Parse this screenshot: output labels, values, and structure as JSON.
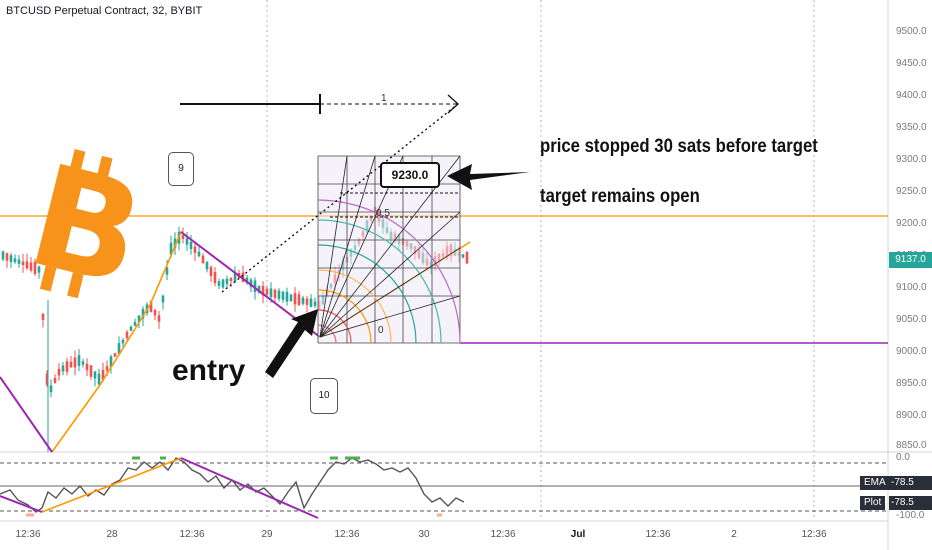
{
  "header": {
    "symbol_title": "BTCUSD Perpetual Contract, 32, BYBIT"
  },
  "price_axis": {
    "ticks": [
      "9500.0",
      "9450.0",
      "9400.0",
      "9350.0",
      "9300.0",
      "9250.0",
      "9200.0",
      "9150.0",
      "9100.0",
      "9050.0",
      "9000.0",
      "8950.0",
      "8900.0",
      "8850.0"
    ],
    "last_price": "9137.0",
    "last_price_color": "#26a69a"
  },
  "time_axis": {
    "labels": [
      {
        "text": "12:36",
        "bold": false
      },
      {
        "text": "28",
        "bold": false
      },
      {
        "text": "12:36",
        "bold": false
      },
      {
        "text": "29",
        "bold": false
      },
      {
        "text": "12:36",
        "bold": false
      },
      {
        "text": "30",
        "bold": false
      },
      {
        "text": "12:36",
        "bold": false
      },
      {
        "text": "Jul",
        "bold": true
      },
      {
        "text": "12:36",
        "bold": false
      },
      {
        "text": "2",
        "bold": false
      },
      {
        "text": "12:36",
        "bold": false
      }
    ]
  },
  "indicator": {
    "top_value": "0.0",
    "ema_label": "EMA",
    "ema_value": "-78.5",
    "plot_label": "Plot",
    "plot_value": "-78.5",
    "bottom_value": "-100.0"
  },
  "drawings": {
    "target_label": "9230.0",
    "note_line1": "price stopped 30 sats before target",
    "note_line2": "target remains open",
    "entry_text": "entry",
    "callout_9": "9",
    "callout_10": "10",
    "fib_top": "0.5",
    "fib_bottom": "0",
    "arrow_count": "1"
  },
  "colors": {
    "bull_candle": "#26a69a",
    "bear_candle": "#ef5350",
    "orange_level": "#ff9800",
    "purple_level": "#9c27b0",
    "bitcoin_orange": "#f7931a"
  }
}
